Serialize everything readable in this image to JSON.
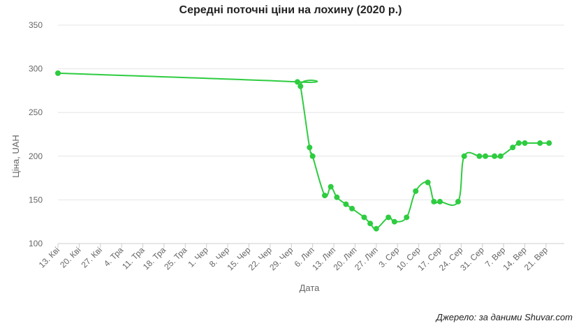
{
  "chart_data": {
    "type": "line",
    "title": "Середні поточні ціни на лохину (2020 р.)",
    "xlabel": "Дата",
    "ylabel": "Ціна, UAH",
    "ylim": [
      100,
      350
    ],
    "yticks": [
      100,
      150,
      200,
      250,
      300,
      350
    ],
    "xlim": [
      "2020-04-13",
      "2020-09-27"
    ],
    "xticks": [
      {
        "date": "2020-04-13",
        "label": "13. Кві"
      },
      {
        "date": "2020-04-20",
        "label": "20. Кві"
      },
      {
        "date": "2020-04-27",
        "label": "27. Кві"
      },
      {
        "date": "2020-05-04",
        "label": "4. Тра"
      },
      {
        "date": "2020-05-11",
        "label": "11. Тра"
      },
      {
        "date": "2020-05-18",
        "label": "18. Тра"
      },
      {
        "date": "2020-05-25",
        "label": "25. Тра"
      },
      {
        "date": "2020-06-01",
        "label": "1. Чер"
      },
      {
        "date": "2020-06-08",
        "label": "8. Чер"
      },
      {
        "date": "2020-06-15",
        "label": "15. Чер"
      },
      {
        "date": "2020-06-22",
        "label": "22. Чер"
      },
      {
        "date": "2020-06-29",
        "label": "29. Чер"
      },
      {
        "date": "2020-07-06",
        "label": "6. Лип"
      },
      {
        "date": "2020-07-13",
        "label": "13. Лип"
      },
      {
        "date": "2020-07-20",
        "label": "20. Лип"
      },
      {
        "date": "2020-07-27",
        "label": "27. Лип"
      },
      {
        "date": "2020-08-03",
        "label": "3. Сер"
      },
      {
        "date": "2020-08-10",
        "label": "10. Сер"
      },
      {
        "date": "2020-08-17",
        "label": "17. Сер"
      },
      {
        "date": "2020-08-24",
        "label": "24. Сер"
      },
      {
        "date": "2020-08-31",
        "label": "31. Сер"
      },
      {
        "date": "2020-09-07",
        "label": "7. Вер"
      },
      {
        "date": "2020-09-14",
        "label": "14. Вер"
      },
      {
        "date": "2020-09-21",
        "label": "21. Вер"
      }
    ],
    "grid": true,
    "line_color": "#2ecc40",
    "points": [
      {
        "x": "2020-04-13",
        "y": 295
      },
      {
        "x": "2020-07-01",
        "y": 285
      },
      {
        "x": "2020-07-02",
        "y": 280
      },
      {
        "x": "2020-07-05",
        "y": 210
      },
      {
        "x": "2020-07-06",
        "y": 200
      },
      {
        "x": "2020-07-10",
        "y": 155
      },
      {
        "x": "2020-07-12",
        "y": 165
      },
      {
        "x": "2020-07-14",
        "y": 153
      },
      {
        "x": "2020-07-17",
        "y": 145
      },
      {
        "x": "2020-07-19",
        "y": 140
      },
      {
        "x": "2020-07-23",
        "y": 130
      },
      {
        "x": "2020-07-25",
        "y": 123
      },
      {
        "x": "2020-07-27",
        "y": 117
      },
      {
        "x": "2020-07-31",
        "y": 130
      },
      {
        "x": "2020-08-02",
        "y": 125
      },
      {
        "x": "2020-08-06",
        "y": 130
      },
      {
        "x": "2020-08-09",
        "y": 160
      },
      {
        "x": "2020-08-13",
        "y": 170
      },
      {
        "x": "2020-08-15",
        "y": 148
      },
      {
        "x": "2020-08-17",
        "y": 148
      },
      {
        "x": "2020-08-23",
        "y": 148
      },
      {
        "x": "2020-08-25",
        "y": 200
      },
      {
        "x": "2020-08-30",
        "y": 200
      },
      {
        "x": "2020-09-01",
        "y": 200
      },
      {
        "x": "2020-09-04",
        "y": 200
      },
      {
        "x": "2020-09-06",
        "y": 200
      },
      {
        "x": "2020-09-10",
        "y": 210
      },
      {
        "x": "2020-09-12",
        "y": 215
      },
      {
        "x": "2020-09-14",
        "y": 215
      },
      {
        "x": "2020-09-19",
        "y": 215
      },
      {
        "x": "2020-09-22",
        "y": 215
      }
    ]
  },
  "source_note": "Джерело: за даними Shuvar.com"
}
